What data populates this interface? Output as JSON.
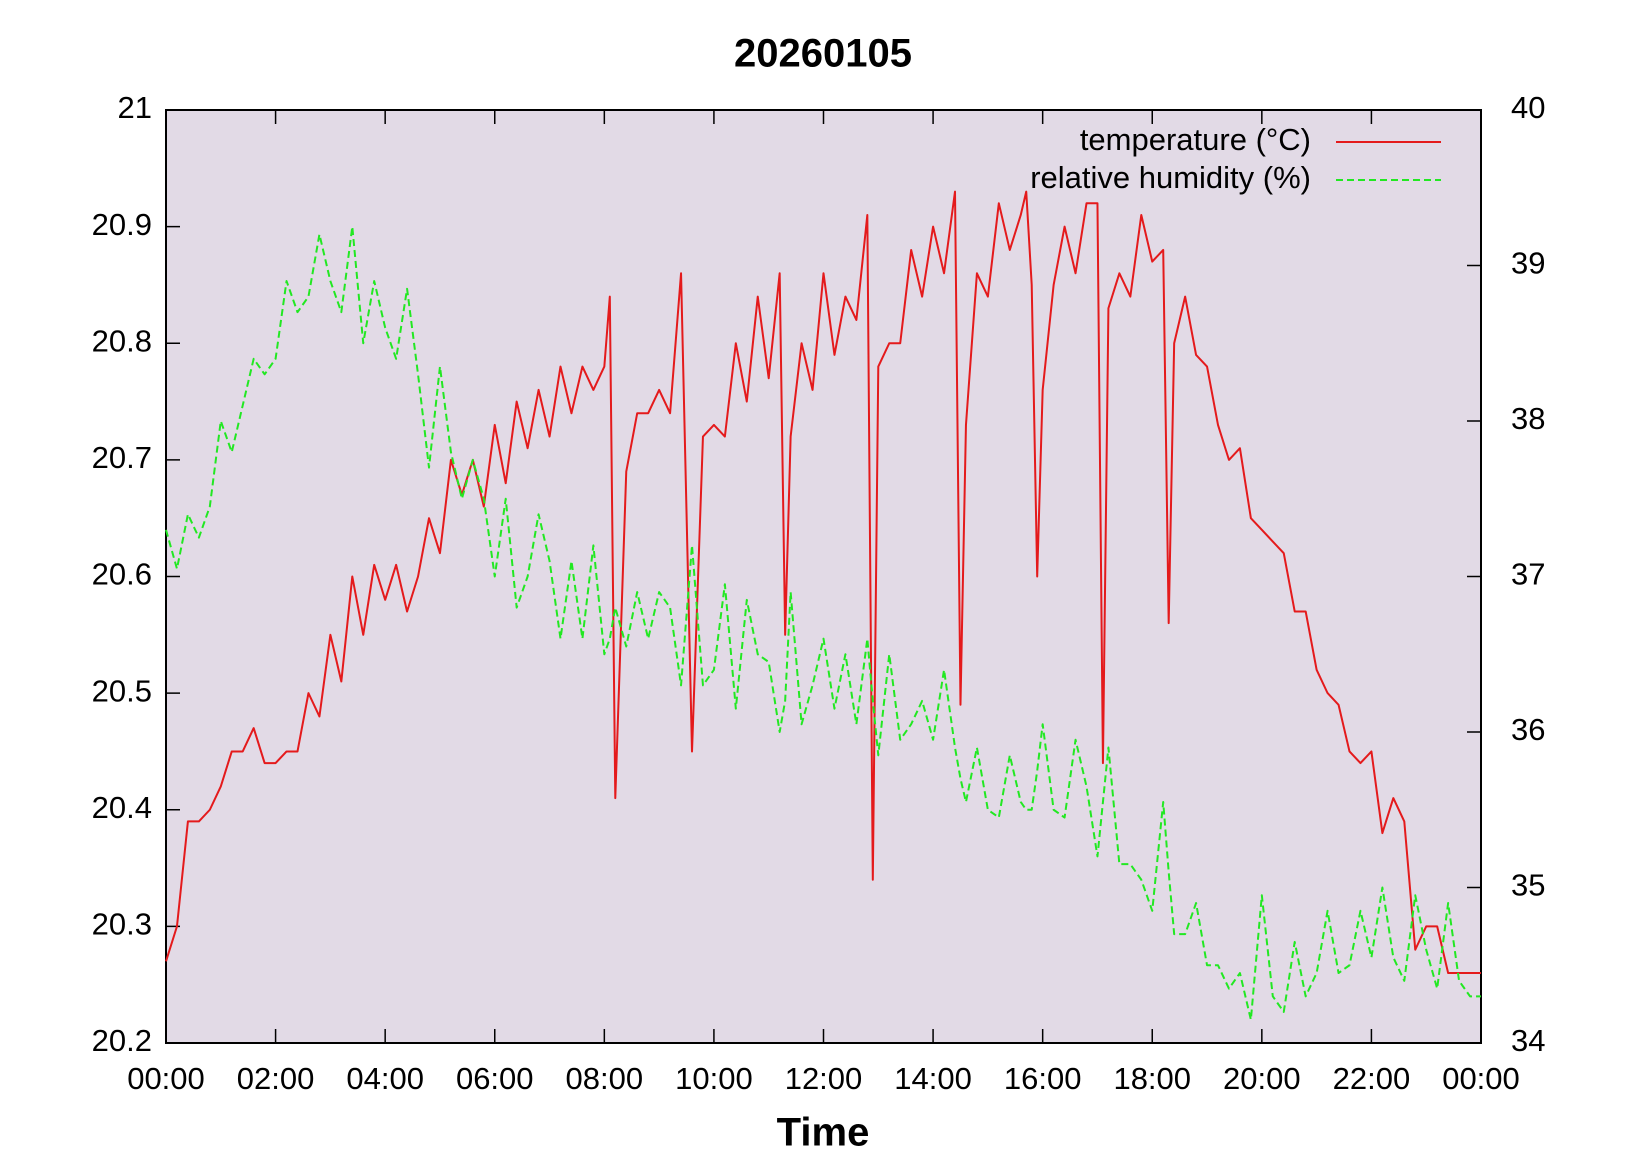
{
  "chart_data": {
    "type": "line",
    "title": "20260105",
    "x_label": "Time",
    "x": [
      0,
      0.2,
      0.4,
      0.6,
      0.8,
      1.0,
      1.2,
      1.4,
      1.6,
      1.8,
      2.0,
      2.2,
      2.4,
      2.6,
      2.8,
      3.0,
      3.2,
      3.4,
      3.6,
      3.8,
      4.0,
      4.2,
      4.4,
      4.6,
      4.8,
      5.0,
      5.2,
      5.4,
      5.6,
      5.8,
      6.0,
      6.2,
      6.4,
      6.6,
      6.8,
      7.0,
      7.2,
      7.4,
      7.6,
      7.8,
      8.0,
      8.1,
      8.2,
      8.4,
      8.6,
      8.8,
      9.0,
      9.2,
      9.4,
      9.6,
      9.8,
      10.0,
      10.2,
      10.4,
      10.6,
      10.8,
      11.0,
      11.2,
      11.3,
      11.4,
      11.6,
      11.8,
      12.0,
      12.2,
      12.4,
      12.6,
      12.8,
      12.9,
      13.0,
      13.2,
      13.4,
      13.6,
      13.8,
      14.0,
      14.2,
      14.4,
      14.5,
      14.6,
      14.8,
      15.0,
      15.2,
      15.4,
      15.6,
      15.7,
      15.8,
      15.9,
      16.0,
      16.2,
      16.4,
      16.6,
      16.8,
      17.0,
      17.1,
      17.2,
      17.4,
      17.6,
      17.8,
      18.0,
      18.2,
      18.3,
      18.4,
      18.6,
      18.8,
      19.0,
      19.2,
      19.4,
      19.6,
      19.8,
      20.0,
      20.2,
      20.4,
      20.6,
      20.8,
      21.0,
      21.2,
      21.4,
      21.6,
      21.8,
      22.0,
      22.2,
      22.4,
      22.6,
      22.8,
      23.0,
      23.2,
      23.4,
      23.6,
      23.8,
      24.0
    ],
    "series": [
      {
        "name": "temperature (°C)",
        "color": "#e41a1c",
        "dash": false,
        "values": [
          20.27,
          20.3,
          20.39,
          20.39,
          20.4,
          20.42,
          20.45,
          20.45,
          20.47,
          20.44,
          20.44,
          20.45,
          20.45,
          20.5,
          20.48,
          20.55,
          20.51,
          20.6,
          20.55,
          20.61,
          20.58,
          20.61,
          20.57,
          20.6,
          20.65,
          20.62,
          20.7,
          20.67,
          20.7,
          20.66,
          20.73,
          20.68,
          20.75,
          20.71,
          20.76,
          20.72,
          20.78,
          20.74,
          20.78,
          20.76,
          20.78,
          20.84,
          20.41,
          20.69,
          20.74,
          20.74,
          20.76,
          20.74,
          20.86,
          20.45,
          20.72,
          20.73,
          20.72,
          20.8,
          20.75,
          20.84,
          20.77,
          20.86,
          20.55,
          20.72,
          20.8,
          20.76,
          20.86,
          20.79,
          20.84,
          20.82,
          20.91,
          20.34,
          20.78,
          20.8,
          20.8,
          20.88,
          20.84,
          20.9,
          20.86,
          20.93,
          20.49,
          20.73,
          20.86,
          20.84,
          20.92,
          20.88,
          20.91,
          20.93,
          20.85,
          20.6,
          20.76,
          20.85,
          20.9,
          20.86,
          20.92,
          20.92,
          20.44,
          20.83,
          20.86,
          20.84,
          20.91,
          20.87,
          20.88,
          20.56,
          20.8,
          20.84,
          20.79,
          20.78,
          20.73,
          20.7,
          20.71,
          20.65,
          20.64,
          20.63,
          20.62,
          20.57,
          20.57,
          20.52,
          20.5,
          20.49,
          20.45,
          20.44,
          20.45,
          20.38,
          20.41,
          20.39,
          20.28,
          20.3,
          20.3,
          20.26,
          20.26,
          20.26,
          20.26
        ]
      },
      {
        "name": "relative humidity (%)",
        "color": "#22e822",
        "dash": true,
        "axis": "y2",
        "values": [
          37.3,
          37.05,
          37.4,
          37.25,
          37.45,
          38.0,
          37.8,
          38.1,
          38.4,
          38.3,
          38.4,
          38.9,
          38.7,
          38.8,
          39.2,
          38.9,
          38.7,
          39.25,
          38.5,
          38.9,
          38.6,
          38.4,
          38.85,
          38.3,
          37.7,
          38.35,
          37.8,
          37.5,
          37.75,
          37.5,
          37.0,
          37.5,
          36.8,
          37.0,
          37.4,
          37.1,
          36.6,
          37.1,
          36.6,
          37.2,
          36.5,
          36.6,
          36.8,
          36.55,
          36.9,
          36.6,
          36.9,
          36.8,
          36.3,
          37.2,
          36.3,
          36.4,
          36.95,
          36.15,
          36.85,
          36.5,
          36.45,
          36.0,
          36.2,
          36.9,
          36.05,
          36.3,
          36.6,
          36.15,
          36.5,
          36.05,
          36.6,
          36.2,
          35.85,
          36.5,
          35.95,
          36.05,
          36.2,
          35.95,
          36.4,
          35.9,
          35.7,
          35.55,
          35.9,
          35.5,
          35.45,
          35.85,
          35.55,
          35.5,
          35.5,
          35.75,
          36.05,
          35.5,
          35.45,
          35.95,
          35.65,
          35.2,
          35.55,
          35.9,
          35.15,
          35.15,
          35.05,
          34.85,
          35.55,
          35.1,
          34.7,
          34.7,
          34.9,
          34.5,
          34.5,
          34.35,
          34.45,
          34.15,
          34.95,
          34.3,
          34.2,
          34.65,
          34.3,
          34.45,
          34.85,
          34.45,
          34.5,
          34.85,
          34.55,
          35.0,
          34.55,
          34.4,
          34.95,
          34.6,
          34.35,
          34.9,
          34.4,
          34.3,
          34.3
        ]
      }
    ],
    "xlim": [
      0,
      24
    ],
    "xticks": [
      {
        "value": 0,
        "label": "00:00"
      },
      {
        "value": 2,
        "label": "02:00"
      },
      {
        "value": 4,
        "label": "04:00"
      },
      {
        "value": 6,
        "label": "06:00"
      },
      {
        "value": 8,
        "label": "08:00"
      },
      {
        "value": 10,
        "label": "10:00"
      },
      {
        "value": 12,
        "label": "12:00"
      },
      {
        "value": 14,
        "label": "14:00"
      },
      {
        "value": 16,
        "label": "16:00"
      },
      {
        "value": 18,
        "label": "18:00"
      },
      {
        "value": 20,
        "label": "20:00"
      },
      {
        "value": 22,
        "label": "22:00"
      },
      {
        "value": 24,
        "label": "00:00"
      }
    ],
    "ylim": [
      20.2,
      21
    ],
    "yticks": [
      20.2,
      20.3,
      20.4,
      20.5,
      20.6,
      20.7,
      20.8,
      20.9,
      21
    ],
    "y2lim": [
      34,
      40
    ],
    "y2ticks": [
      34,
      35,
      36,
      37,
      38,
      39,
      40
    ],
    "legend": "top right",
    "plot_background": "#e2dae6"
  }
}
